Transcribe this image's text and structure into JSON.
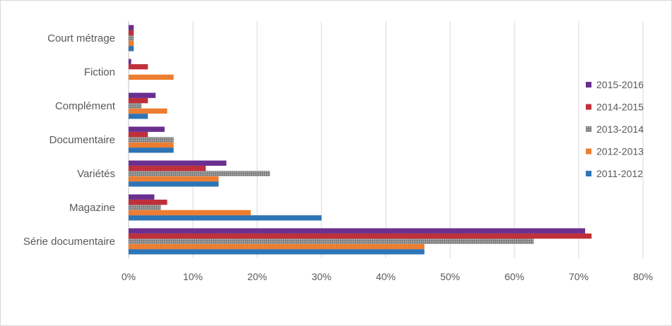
{
  "chart_data": {
    "type": "bar",
    "orientation": "horizontal",
    "categories": [
      "Série documentaire",
      "Magazine",
      "Variétés",
      "Documentaire",
      "Complément",
      "Fiction",
      "Court métrage"
    ],
    "series": [
      {
        "name": "2011-2012",
        "color": "#2e75b6",
        "values": [
          46,
          30,
          14,
          7,
          3,
          0,
          0.8
        ]
      },
      {
        "name": "2012-2013",
        "color": "#ed7d31",
        "values": [
          46,
          19,
          14,
          7,
          6,
          7,
          0.8
        ]
      },
      {
        "name": "2013-2014",
        "color": "#7f7f7f",
        "pattern": "hatched",
        "values": [
          63,
          5,
          22,
          7,
          2,
          0,
          0.8
        ]
      },
      {
        "name": "2014-2015",
        "color": "#c0303a",
        "values": [
          72,
          6,
          12,
          3,
          3,
          3,
          0.8
        ]
      },
      {
        "name": "2015-2016",
        "color": "#6a2f8f",
        "values": [
          71,
          4,
          15.2,
          5.6,
          4.2,
          0.4,
          0.8
        ]
      }
    ],
    "x_ticks": [
      "0%",
      "10%",
      "20%",
      "30%",
      "40%",
      "50%",
      "60%",
      "70%",
      "80%"
    ],
    "xlim": [
      0,
      80
    ],
    "grid": "vertical",
    "legend": {
      "placement": "right",
      "order": [
        "2015-2016",
        "2014-2015",
        "2013-2014",
        "2012-2013",
        "2011-2012"
      ]
    },
    "title": "",
    "xlabel": "",
    "ylabel": ""
  }
}
